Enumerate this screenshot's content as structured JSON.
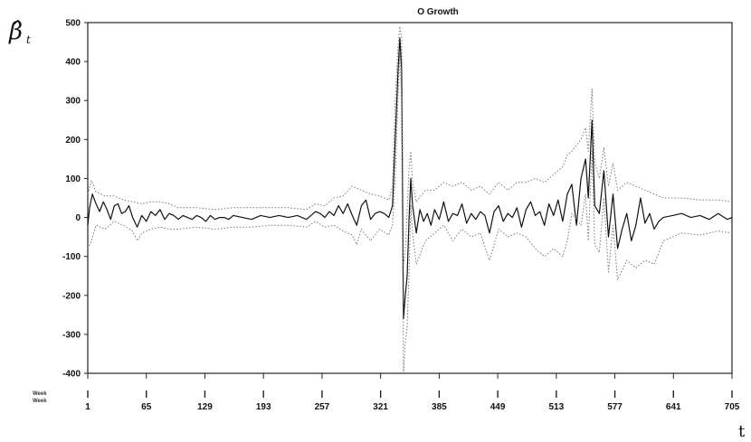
{
  "chart_data": {
    "type": "line",
    "title": "O Growth",
    "ylabel": "β̂",
    "ylabel_subscript": "t",
    "xlabel": "t",
    "row_labels": [
      "Week",
      "Week"
    ],
    "ylim": [
      -400,
      500
    ],
    "yticks": [
      500,
      400,
      300,
      200,
      100,
      0,
      -100,
      -200,
      -300,
      -400
    ],
    "xlim": [
      1,
      705
    ],
    "xticks": [
      1,
      65,
      129,
      193,
      257,
      321,
      385,
      449,
      513,
      577,
      641,
      705
    ],
    "xtick_labels": [
      "1",
      "65",
      "129",
      "193",
      "257",
      "321",
      "385",
      "449",
      "513",
      "577",
      "641",
      "705"
    ],
    "series": [
      {
        "role": "estimate",
        "style": "solid",
        "color": "#111111",
        "points": [
          [
            1,
            -20
          ],
          [
            3,
            25
          ],
          [
            6,
            60
          ],
          [
            10,
            35
          ],
          [
            14,
            15
          ],
          [
            18,
            40
          ],
          [
            22,
            20
          ],
          [
            26,
            -5
          ],
          [
            30,
            30
          ],
          [
            34,
            35
          ],
          [
            38,
            10
          ],
          [
            42,
            15
          ],
          [
            46,
            30
          ],
          [
            50,
            0
          ],
          [
            55,
            -25
          ],
          [
            60,
            5
          ],
          [
            65,
            -10
          ],
          [
            70,
            15
          ],
          [
            75,
            5
          ],
          [
            80,
            20
          ],
          [
            85,
            -5
          ],
          [
            90,
            10
          ],
          [
            95,
            5
          ],
          [
            100,
            -5
          ],
          [
            105,
            5
          ],
          [
            110,
            0
          ],
          [
            115,
            -5
          ],
          [
            120,
            5
          ],
          [
            125,
            0
          ],
          [
            130,
            -10
          ],
          [
            135,
            5
          ],
          [
            140,
            -5
          ],
          [
            145,
            0
          ],
          [
            150,
            0
          ],
          [
            155,
            -5
          ],
          [
            160,
            5
          ],
          [
            170,
            0
          ],
          [
            180,
            -5
          ],
          [
            190,
            5
          ],
          [
            200,
            0
          ],
          [
            210,
            5
          ],
          [
            220,
            0
          ],
          [
            230,
            5
          ],
          [
            240,
            -5
          ],
          [
            250,
            15
          ],
          [
            255,
            10
          ],
          [
            260,
            0
          ],
          [
            265,
            15
          ],
          [
            270,
            5
          ],
          [
            275,
            30
          ],
          [
            280,
            10
          ],
          [
            285,
            35
          ],
          [
            290,
            5
          ],
          [
            295,
            -20
          ],
          [
            300,
            30
          ],
          [
            305,
            45
          ],
          [
            310,
            -5
          ],
          [
            315,
            10
          ],
          [
            320,
            15
          ],
          [
            325,
            10
          ],
          [
            330,
            0
          ],
          [
            334,
            30
          ],
          [
            337,
            200
          ],
          [
            340,
            375
          ],
          [
            342,
            460
          ],
          [
            344,
            380
          ],
          [
            346,
            -260
          ],
          [
            348,
            -200
          ],
          [
            350,
            -150
          ],
          [
            352,
            -10
          ],
          [
            354,
            100
          ],
          [
            356,
            30
          ],
          [
            360,
            -40
          ],
          [
            364,
            20
          ],
          [
            368,
            -10
          ],
          [
            372,
            10
          ],
          [
            376,
            -20
          ],
          [
            380,
            20
          ],
          [
            385,
            -5
          ],
          [
            390,
            40
          ],
          [
            395,
            -10
          ],
          [
            400,
            10
          ],
          [
            405,
            5
          ],
          [
            410,
            35
          ],
          [
            415,
            -15
          ],
          [
            420,
            10
          ],
          [
            425,
            -5
          ],
          [
            430,
            15
          ],
          [
            435,
            5
          ],
          [
            440,
            -40
          ],
          [
            445,
            15
          ],
          [
            450,
            30
          ],
          [
            455,
            -10
          ],
          [
            460,
            10
          ],
          [
            465,
            0
          ],
          [
            470,
            25
          ],
          [
            475,
            -25
          ],
          [
            480,
            20
          ],
          [
            485,
            40
          ],
          [
            490,
            5
          ],
          [
            495,
            15
          ],
          [
            500,
            -20
          ],
          [
            505,
            35
          ],
          [
            510,
            5
          ],
          [
            515,
            45
          ],
          [
            520,
            -10
          ],
          [
            525,
            60
          ],
          [
            530,
            85
          ],
          [
            535,
            -20
          ],
          [
            540,
            100
          ],
          [
            545,
            150
          ],
          [
            548,
            50
          ],
          [
            552,
            250
          ],
          [
            555,
            30
          ],
          [
            560,
            10
          ],
          [
            565,
            120
          ],
          [
            570,
            -50
          ],
          [
            575,
            60
          ],
          [
            580,
            -80
          ],
          [
            585,
            -30
          ],
          [
            590,
            10
          ],
          [
            595,
            -60
          ],
          [
            600,
            -20
          ],
          [
            605,
            50
          ],
          [
            610,
            -15
          ],
          [
            615,
            10
          ],
          [
            620,
            -30
          ],
          [
            625,
            -10
          ],
          [
            630,
            0
          ],
          [
            640,
            5
          ],
          [
            650,
            10
          ],
          [
            660,
            0
          ],
          [
            670,
            5
          ],
          [
            680,
            -5
          ],
          [
            690,
            10
          ],
          [
            700,
            -5
          ],
          [
            705,
            0
          ]
        ]
      },
      {
        "role": "upper band",
        "style": "dotted",
        "color": "#777777",
        "points": [
          [
            1,
            60
          ],
          [
            5,
            95
          ],
          [
            10,
            65
          ],
          [
            20,
            55
          ],
          [
            30,
            55
          ],
          [
            40,
            45
          ],
          [
            50,
            40
          ],
          [
            60,
            35
          ],
          [
            70,
            40
          ],
          [
            80,
            40
          ],
          [
            90,
            35
          ],
          [
            100,
            25
          ],
          [
            120,
            25
          ],
          [
            140,
            20
          ],
          [
            160,
            25
          ],
          [
            180,
            25
          ],
          [
            200,
            25
          ],
          [
            220,
            25
          ],
          [
            240,
            20
          ],
          [
            250,
            35
          ],
          [
            260,
            30
          ],
          [
            270,
            50
          ],
          [
            280,
            55
          ],
          [
            290,
            80
          ],
          [
            300,
            70
          ],
          [
            310,
            60
          ],
          [
            320,
            55
          ],
          [
            330,
            45
          ],
          [
            334,
            80
          ],
          [
            337,
            300
          ],
          [
            340,
            440
          ],
          [
            342,
            490
          ],
          [
            344,
            460
          ],
          [
            346,
            -120
          ],
          [
            348,
            -90
          ],
          [
            350,
            20
          ],
          [
            352,
            120
          ],
          [
            354,
            170
          ],
          [
            356,
            90
          ],
          [
            360,
            40
          ],
          [
            370,
            70
          ],
          [
            380,
            70
          ],
          [
            390,
            90
          ],
          [
            400,
            80
          ],
          [
            410,
            90
          ],
          [
            420,
            70
          ],
          [
            430,
            80
          ],
          [
            440,
            60
          ],
          [
            450,
            90
          ],
          [
            460,
            70
          ],
          [
            470,
            90
          ],
          [
            480,
            90
          ],
          [
            490,
            100
          ],
          [
            500,
            90
          ],
          [
            510,
            110
          ],
          [
            520,
            130
          ],
          [
            525,
            160
          ],
          [
            530,
            170
          ],
          [
            540,
            200
          ],
          [
            545,
            230
          ],
          [
            548,
            170
          ],
          [
            552,
            330
          ],
          [
            555,
            140
          ],
          [
            560,
            100
          ],
          [
            565,
            180
          ],
          [
            570,
            80
          ],
          [
            575,
            140
          ],
          [
            580,
            70
          ],
          [
            590,
            90
          ],
          [
            600,
            80
          ],
          [
            610,
            70
          ],
          [
            620,
            60
          ],
          [
            630,
            50
          ],
          [
            650,
            50
          ],
          [
            670,
            45
          ],
          [
            690,
            45
          ],
          [
            705,
            40
          ]
        ]
      },
      {
        "role": "lower band",
        "style": "dotted",
        "color": "#777777",
        "points": [
          [
            1,
            -80
          ],
          [
            5,
            -60
          ],
          [
            10,
            -20
          ],
          [
            20,
            -30
          ],
          [
            30,
            -10
          ],
          [
            40,
            -20
          ],
          [
            50,
            -35
          ],
          [
            55,
            -60
          ],
          [
            60,
            -40
          ],
          [
            70,
            -30
          ],
          [
            80,
            -25
          ],
          [
            90,
            -30
          ],
          [
            100,
            -30
          ],
          [
            120,
            -25
          ],
          [
            140,
            -30
          ],
          [
            160,
            -25
          ],
          [
            180,
            -25
          ],
          [
            200,
            -20
          ],
          [
            220,
            -20
          ],
          [
            240,
            -25
          ],
          [
            250,
            -10
          ],
          [
            260,
            -25
          ],
          [
            270,
            -20
          ],
          [
            280,
            -35
          ],
          [
            290,
            -45
          ],
          [
            295,
            -70
          ],
          [
            300,
            -30
          ],
          [
            310,
            -60
          ],
          [
            320,
            -30
          ],
          [
            330,
            -45
          ],
          [
            334,
            -20
          ],
          [
            337,
            100
          ],
          [
            340,
            310
          ],
          [
            342,
            420
          ],
          [
            344,
            300
          ],
          [
            346,
            -400
          ],
          [
            348,
            -320
          ],
          [
            350,
            -280
          ],
          [
            352,
            -150
          ],
          [
            354,
            30
          ],
          [
            356,
            -40
          ],
          [
            360,
            -120
          ],
          [
            370,
            -60
          ],
          [
            380,
            -40
          ],
          [
            390,
            -20
          ],
          [
            400,
            -60
          ],
          [
            410,
            -30
          ],
          [
            420,
            -50
          ],
          [
            430,
            -40
          ],
          [
            440,
            -110
          ],
          [
            450,
            -30
          ],
          [
            460,
            -50
          ],
          [
            470,
            -40
          ],
          [
            480,
            -50
          ],
          [
            490,
            -80
          ],
          [
            500,
            -100
          ],
          [
            510,
            -80
          ],
          [
            520,
            -100
          ],
          [
            525,
            -60
          ],
          [
            530,
            10
          ],
          [
            540,
            -20
          ],
          [
            545,
            60
          ],
          [
            548,
            -60
          ],
          [
            552,
            170
          ],
          [
            555,
            -70
          ],
          [
            560,
            -90
          ],
          [
            565,
            50
          ],
          [
            570,
            -140
          ],
          [
            575,
            -20
          ],
          [
            580,
            -160
          ],
          [
            590,
            -110
          ],
          [
            600,
            -130
          ],
          [
            610,
            -110
          ],
          [
            620,
            -120
          ],
          [
            630,
            -60
          ],
          [
            650,
            -40
          ],
          [
            670,
            -45
          ],
          [
            690,
            -35
          ],
          [
            705,
            -40
          ]
        ]
      }
    ]
  }
}
